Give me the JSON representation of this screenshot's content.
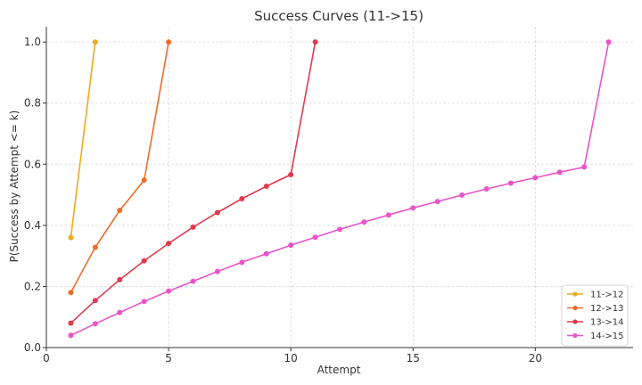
{
  "chart_data": {
    "type": "line",
    "title": "Success Curves (11->15)",
    "xlabel": "Attempt",
    "ylabel": "P(Success by Attempt <= k)",
    "xlim": [
      0,
      24
    ],
    "ylim": [
      0,
      1.05
    ],
    "xticks": [
      "0",
      "5",
      "10",
      "15",
      "20"
    ],
    "yticks": [
      "0.0",
      "0.2",
      "0.4",
      "0.6",
      "0.8",
      "1.0"
    ],
    "grid": true,
    "legend_position": "bottom-right",
    "series": [
      {
        "name": "11->12",
        "color": "#f0aa1e",
        "x": [
          1,
          2
        ],
        "y": [
          0.36,
          1.0
        ]
      },
      {
        "name": "12->13",
        "color": "#ee6c2c",
        "x": [
          1,
          2,
          3,
          4,
          5
        ],
        "y": [
          0.18,
          0.328,
          0.449,
          0.548,
          1.0
        ]
      },
      {
        "name": "13->14",
        "color": "#e03a4e",
        "x": [
          1,
          2,
          3,
          4,
          5,
          6,
          7,
          8,
          9,
          10,
          11
        ],
        "y": [
          0.08,
          0.154,
          0.222,
          0.284,
          0.341,
          0.394,
          0.442,
          0.487,
          0.528,
          0.566,
          1.0
        ]
      },
      {
        "name": "14->15",
        "color": "#ea54c8",
        "x": [
          1,
          2,
          3,
          4,
          5,
          6,
          7,
          8,
          9,
          10,
          11,
          12,
          13,
          14,
          15,
          16,
          17,
          18,
          19,
          20,
          21,
          22,
          23
        ],
        "y": [
          0.04,
          0.078,
          0.115,
          0.151,
          0.185,
          0.217,
          0.249,
          0.279,
          0.307,
          0.335,
          0.361,
          0.387,
          0.411,
          0.434,
          0.457,
          0.478,
          0.499,
          0.519,
          0.538,
          0.556,
          0.574,
          0.591,
          1.0
        ]
      }
    ]
  }
}
